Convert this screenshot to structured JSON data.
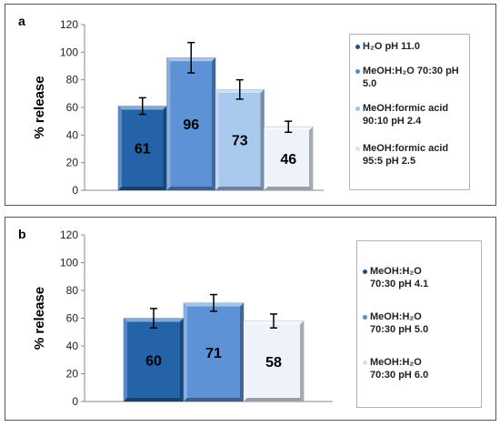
{
  "panels": [
    {
      "letter": "a",
      "legend": [
        {
          "text": "H₂O pH 11.0",
          "color": "#1f4e8c"
        },
        {
          "text": "MeOH:H₂O 70:30 pH 5.0",
          "color": "#4a90d9"
        },
        {
          "text": "MeOH:formic acid 90:10 pH 2.4",
          "color": "#9cc3ef"
        },
        {
          "text": "MeOH:formic acid 95:5 pH 2.5",
          "color": "#d2e3f7"
        }
      ]
    },
    {
      "letter": "b",
      "legend": [
        {
          "text": "MeOH:H₂O 70:30 pH 4.1",
          "color": "#1f4e8c"
        },
        {
          "text": "MeOH:H₂O 70:30 pH 5.0",
          "color": "#4a90d9"
        },
        {
          "text": "MeOH:H₂O 70:30 pH 6.0",
          "color": "#d2e3f7"
        }
      ]
    }
  ],
  "chart_data": [
    {
      "type": "bar",
      "title": "",
      "ylabel": "% release",
      "ylim": [
        0,
        120
      ],
      "yticks": [
        "0",
        "20",
        "40",
        "60",
        "80",
        "100",
        "120"
      ],
      "categories": [
        "H₂O pH 11.0",
        "MeOH:H₂O 70:30 pH 5.0",
        "MeOH:formic acid 90:10 pH 2.4",
        "MeOH:formic acid 95:5 pH 2.5"
      ],
      "values": [
        61,
        96,
        73,
        46
      ],
      "errors": [
        6,
        11,
        7,
        4
      ],
      "labels": [
        "61",
        "96",
        "73",
        "46"
      ],
      "colors": [
        "#2563a8",
        "#5d93d6",
        "#a9c9ef",
        "#eef3fb"
      ],
      "label_colors": [
        "#000000",
        "#000000",
        "#000000",
        "#000000"
      ],
      "legend_position": "right"
    },
    {
      "type": "bar",
      "title": "",
      "ylabel": "% release",
      "ylim": [
        0,
        120
      ],
      "yticks": [
        "0",
        "20",
        "40",
        "60",
        "80",
        "100",
        "120"
      ],
      "categories": [
        "MeOH:H₂O 70:30 pH 4.1",
        "MeOH:H₂O 70:30 pH 5.0",
        "MeOH:H₂O 70:30 pH 6.0"
      ],
      "values": [
        60,
        71,
        58
      ],
      "errors": [
        7,
        6,
        5
      ],
      "labels": [
        "60",
        "71",
        "58"
      ],
      "colors": [
        "#2563a8",
        "#5d93d6",
        "#eef3fb"
      ],
      "label_colors": [
        "#000000",
        "#000000",
        "#000000"
      ],
      "legend_position": "right"
    }
  ]
}
